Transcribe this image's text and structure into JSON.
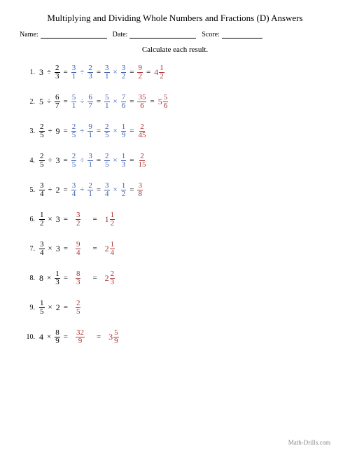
{
  "title": "Multiplying and Dividing Whole Numbers and Fractions (D) Answers",
  "header": {
    "name": "Name:",
    "date": "Date:",
    "score": "Score:"
  },
  "instruction": "Calculate each result.",
  "footer": "Math-Drills.com",
  "colors": {
    "problem": "#000000",
    "step": "#3a5fb0",
    "result": "#b03030"
  },
  "problems": [
    {
      "n": "1.",
      "lhs": {
        "type": "wdivf",
        "w": "3",
        "fn": "2",
        "fd": "3"
      },
      "steps": [
        {
          "type": "fdivf",
          "an": "3",
          "ad": "1",
          "bn": "2",
          "bd": "3"
        },
        {
          "type": "fmulf",
          "an": "3",
          "ad": "1",
          "bn": "3",
          "bd": "2"
        }
      ],
      "resFrac": {
        "n": "9",
        "d": "2"
      },
      "resMixed": {
        "w": "4",
        "n": "1",
        "d": "2"
      }
    },
    {
      "n": "2.",
      "lhs": {
        "type": "wdivf",
        "w": "5",
        "fn": "6",
        "fd": "7"
      },
      "steps": [
        {
          "type": "fdivf",
          "an": "5",
          "ad": "1",
          "bn": "6",
          "bd": "7"
        },
        {
          "type": "fmulf",
          "an": "5",
          "ad": "1",
          "bn": "7",
          "bd": "6"
        }
      ],
      "resFrac": {
        "n": "35",
        "d": "6"
      },
      "resMixed": {
        "w": "5",
        "n": "5",
        "d": "6"
      }
    },
    {
      "n": "3.",
      "lhs": {
        "type": "fdivw",
        "fn": "2",
        "fd": "5",
        "w": "9"
      },
      "steps": [
        {
          "type": "fdivf",
          "an": "2",
          "ad": "5",
          "bn": "9",
          "bd": "1"
        },
        {
          "type": "fmulf",
          "an": "2",
          "ad": "5",
          "bn": "1",
          "bd": "9"
        }
      ],
      "resFrac": {
        "n": "2",
        "d": "45"
      },
      "resMixed": null
    },
    {
      "n": "4.",
      "lhs": {
        "type": "fdivw",
        "fn": "2",
        "fd": "5",
        "w": "3"
      },
      "steps": [
        {
          "type": "fdivf",
          "an": "2",
          "ad": "5",
          "bn": "3",
          "bd": "1"
        },
        {
          "type": "fmulf",
          "an": "2",
          "ad": "5",
          "bn": "1",
          "bd": "3"
        }
      ],
      "resFrac": {
        "n": "2",
        "d": "15"
      },
      "resMixed": null
    },
    {
      "n": "5.",
      "lhs": {
        "type": "fdivw",
        "fn": "3",
        "fd": "4",
        "w": "2"
      },
      "steps": [
        {
          "type": "fdivf",
          "an": "3",
          "ad": "4",
          "bn": "2",
          "bd": "1"
        },
        {
          "type": "fmulf",
          "an": "3",
          "ad": "4",
          "bn": "1",
          "bd": "2"
        }
      ],
      "resFrac": {
        "n": "3",
        "d": "8"
      },
      "resMixed": null
    },
    {
      "n": "6.",
      "lhs": {
        "type": "fmulw",
        "fn": "1",
        "fd": "2",
        "w": "3"
      },
      "steps": [],
      "resFrac": {
        "n": "3",
        "d": "2"
      },
      "resMixed": {
        "w": "1",
        "n": "1",
        "d": "2"
      }
    },
    {
      "n": "7.",
      "lhs": {
        "type": "fmulw",
        "fn": "3",
        "fd": "4",
        "w": "3"
      },
      "steps": [],
      "resFrac": {
        "n": "9",
        "d": "4"
      },
      "resMixed": {
        "w": "2",
        "n": "1",
        "d": "4"
      }
    },
    {
      "n": "8.",
      "lhs": {
        "type": "wmulf",
        "w": "8",
        "fn": "1",
        "fd": "3"
      },
      "steps": [],
      "resFrac": {
        "n": "8",
        "d": "3"
      },
      "resMixed": {
        "w": "2",
        "n": "2",
        "d": "3"
      }
    },
    {
      "n": "9.",
      "lhs": {
        "type": "fmulw",
        "fn": "1",
        "fd": "5",
        "w": "2"
      },
      "steps": [],
      "resFrac": {
        "n": "2",
        "d": "5"
      },
      "resMixed": null
    },
    {
      "n": "10.",
      "lhs": {
        "type": "wmulf",
        "w": "4",
        "fn": "8",
        "fd": "9"
      },
      "steps": [],
      "resFrac": {
        "n": "32",
        "d": "9"
      },
      "resMixed": {
        "w": "3",
        "n": "5",
        "d": "9"
      }
    }
  ]
}
